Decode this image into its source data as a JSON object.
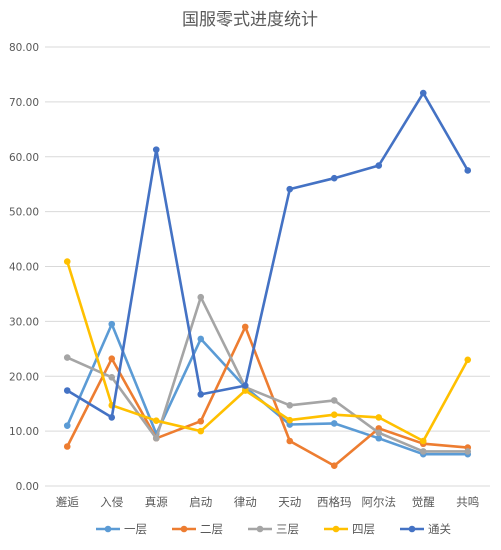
{
  "chart_data": {
    "type": "line",
    "title": "国服零式进度统计",
    "categories": [
      "邂逅",
      "入侵",
      "真源",
      "启动",
      "律动",
      "天动",
      "西格玛",
      "阿尔法",
      "觉醒",
      "共鸣"
    ],
    "ylim": [
      0,
      80
    ],
    "yticks": [
      "0.00",
      "10.00",
      "20.00",
      "30.00",
      "40.00",
      "50.00",
      "60.00",
      "70.00",
      "80.00"
    ],
    "ytick_values": [
      0,
      10,
      20,
      30,
      40,
      50,
      60,
      70,
      80
    ],
    "grid": true,
    "legend_position": "bottom",
    "series": [
      {
        "name": "一层",
        "color": "#5B9BD5",
        "values": [
          11.0,
          29.5,
          9.5,
          26.8,
          18.0,
          11.2,
          11.4,
          8.7,
          5.8,
          5.8
        ]
      },
      {
        "name": "二层",
        "color": "#ED7D31",
        "values": [
          7.2,
          23.2,
          8.7,
          11.8,
          29.0,
          8.2,
          3.7,
          10.5,
          7.7,
          7.0
        ]
      },
      {
        "name": "三层",
        "color": "#A5A5A5",
        "values": [
          23.4,
          19.8,
          8.7,
          34.4,
          18.0,
          14.7,
          15.6,
          9.7,
          6.3,
          6.3
        ]
      },
      {
        "name": "四层",
        "color": "#FFC000",
        "values": [
          40.9,
          14.7,
          11.9,
          10.0,
          17.4,
          12.0,
          13.0,
          12.5,
          8.2,
          23.0
        ]
      },
      {
        "name": "通关",
        "color": "#4472C4",
        "values": [
          17.4,
          12.5,
          61.3,
          16.7,
          18.3,
          54.1,
          56.1,
          58.4,
          71.6,
          57.5
        ]
      }
    ]
  }
}
